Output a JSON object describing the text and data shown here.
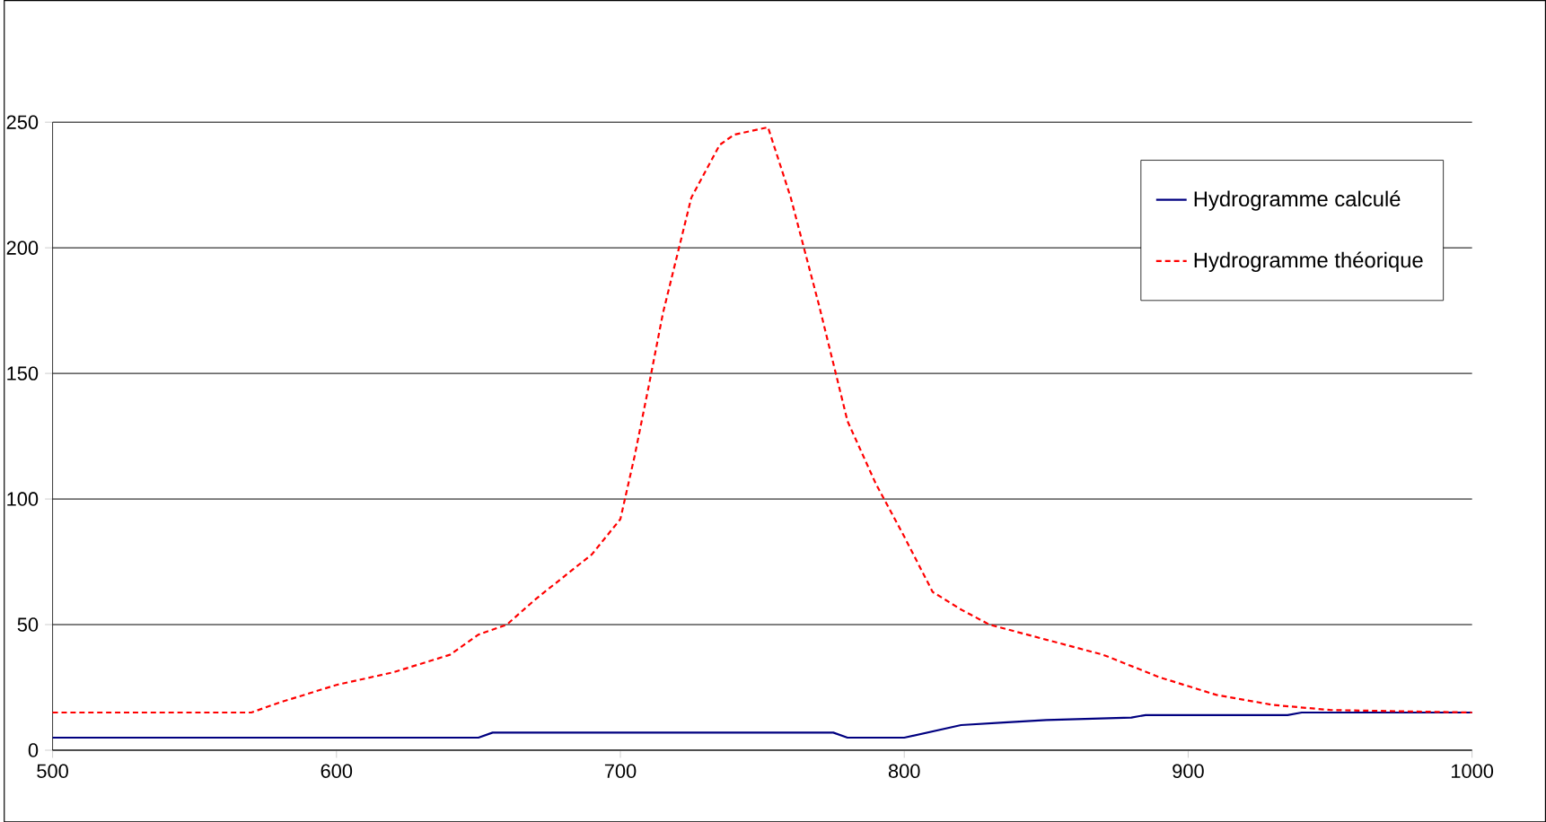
{
  "chart_data": {
    "type": "line",
    "xlim": [
      500,
      1000
    ],
    "ylim": [
      0,
      250
    ],
    "xticks": [
      500,
      600,
      700,
      800,
      900,
      1000
    ],
    "yticks": [
      0,
      50,
      100,
      150,
      200,
      250
    ],
    "grid": "y",
    "legend": "top right",
    "series": [
      {
        "name": "Hydrogramme calculé",
        "color": "#000080",
        "line_style": "solid",
        "x": [
          500,
          650,
          655,
          775,
          780,
          800,
          820,
          835,
          850,
          880,
          885,
          935,
          940,
          1000
        ],
        "values": [
          5,
          5,
          7,
          7,
          5,
          5,
          10,
          11,
          12,
          13,
          14,
          14,
          15,
          15
        ]
      },
      {
        "name": "Hydrogramme théorique",
        "color": "#ff0000",
        "line_style": "dotted",
        "x": [
          500,
          570,
          580,
          600,
          620,
          640,
          650,
          660,
          670,
          680,
          690,
          700,
          705,
          710,
          715,
          725,
          735,
          740,
          752,
          760,
          770,
          780,
          790,
          800,
          810,
          820,
          830,
          850,
          870,
          890,
          910,
          930,
          950,
          1000
        ],
        "values": [
          15,
          15,
          19,
          26,
          31,
          38,
          46,
          50,
          60,
          69,
          78,
          92,
          117,
          145,
          174,
          220,
          241,
          245,
          248,
          220,
          177,
          131,
          106,
          85,
          63,
          56,
          50,
          44,
          38,
          29,
          22,
          18,
          16,
          15
        ]
      }
    ]
  }
}
